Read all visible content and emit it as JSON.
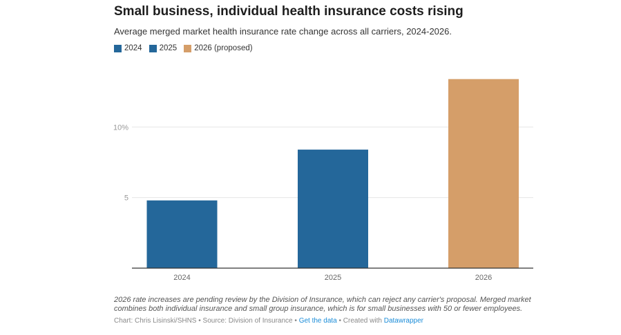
{
  "title": "Small business, individual health insurance costs rising",
  "subtitle": "Average merged market health insurance rate change across all carriers, 2024-2026.",
  "notes": "2026 rate increases are pending review by the Division of Insurance, which can reject any carrier's proposal. Merged market combines both individual insurance and small group insurance, which is for small businesses with 50 or fewer employees.",
  "footer": {
    "chart_credit": "Chart: Chris Lisinski/SHNS",
    "sep1": " • ",
    "source": "Source: Division of Insurance",
    "sep2": " • ",
    "get_data": "Get the data",
    "sep3": " • ",
    "created_with": "Created with ",
    "datawrapper": "Datawrapper"
  },
  "chart_data": {
    "type": "bar",
    "categories": [
      "2024",
      "2025",
      "2026"
    ],
    "values": [
      4.8,
      8.4,
      13.4
    ],
    "colors": [
      "#24679a",
      "#24679a",
      "#d59e69"
    ],
    "legend": [
      {
        "label": "2024",
        "color": "#24679a"
      },
      {
        "label": "2025",
        "color": "#24679a"
      },
      {
        "label": "2026 (proposed)",
        "color": "#d59e69"
      }
    ],
    "legend_position": "top-left",
    "yticks": [
      5,
      10
    ],
    "ytick_labels": [
      "5",
      "10%"
    ],
    "ylim": [
      0,
      13.4
    ],
    "grid": true,
    "xlabel": "",
    "ylabel": ""
  }
}
